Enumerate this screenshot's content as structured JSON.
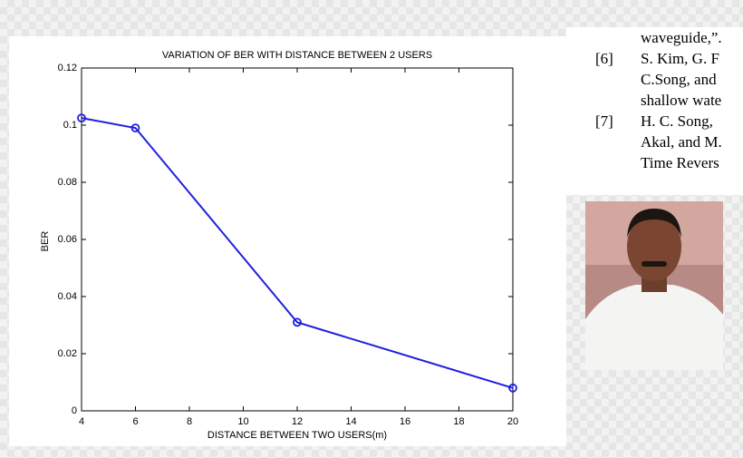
{
  "chart_data": {
    "type": "line",
    "title": "VARIATION OF BER WITH DISTANCE BETWEEN 2 USERS",
    "x_label": "DISTANCE BETWEEN TWO USERS(m)",
    "y_label": "BER",
    "x": [
      4,
      6,
      12,
      20
    ],
    "values": [
      0.1025,
      0.099,
      0.031,
      0.008
    ],
    "color": "#1f1fe0",
    "xlim": [
      4,
      20
    ],
    "xticks": [
      4,
      6,
      8,
      10,
      12,
      14,
      16,
      18,
      20
    ],
    "ylim": [
      0,
      0.12
    ],
    "yticks": [
      0,
      0.02,
      0.04,
      0.06,
      0.08,
      0.1,
      0.12
    ]
  },
  "references": {
    "fragment": "waveguide,”.",
    "items": [
      {
        "number": "[6]",
        "lines": [
          "S. Kim, G. F",
          "C.Song, and",
          "shallow wate"
        ]
      },
      {
        "number": "[7]",
        "lines": [
          "H. C. Song, ",
          "Akal, and M.",
          "Time Revers"
        ]
      }
    ]
  }
}
